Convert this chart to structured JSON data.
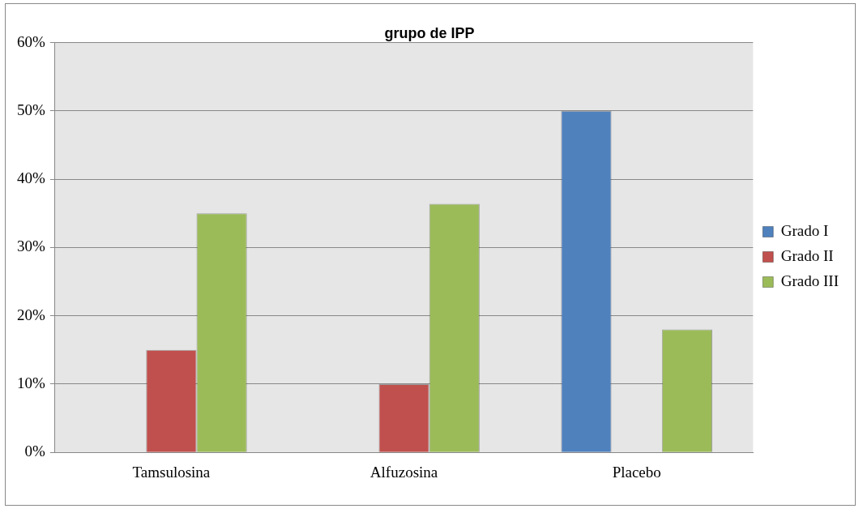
{
  "chart_data": {
    "type": "bar",
    "title": "grupo de IPP",
    "categories": [
      "Tamsulosina",
      "Alfuzosina",
      "Placebo"
    ],
    "series": [
      {
        "name": "Grado I",
        "color": "#4f81bd",
        "values": [
          0,
          0,
          50
        ]
      },
      {
        "name": "Grado II",
        "color": "#c0504d",
        "values": [
          15,
          10,
          0
        ]
      },
      {
        "name": "Grado III",
        "color": "#9bbb59",
        "values": [
          35,
          36.4,
          18
        ]
      }
    ],
    "ylim": [
      0,
      60
    ],
    "yticks": [
      {
        "value": 0,
        "label": "0%"
      },
      {
        "value": 10,
        "label": "10%"
      },
      {
        "value": 20,
        "label": "20%"
      },
      {
        "value": 30,
        "label": "30%"
      },
      {
        "value": 40,
        "label": "40%"
      },
      {
        "value": 50,
        "label": "50%"
      },
      {
        "value": 60,
        "label": "60%"
      }
    ],
    "grid": "y",
    "legend": "right"
  }
}
